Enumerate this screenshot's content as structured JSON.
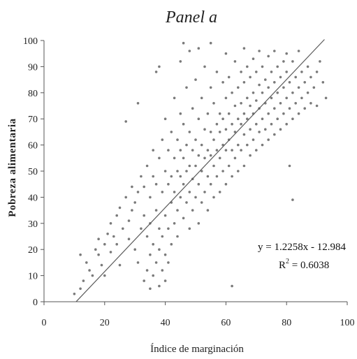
{
  "chart_data": {
    "type": "scatter",
    "title": "Panel a",
    "xlabel": "Índice de marginación",
    "ylabel": "Pobreza alimentaria",
    "xlim": [
      0,
      100
    ],
    "ylim": [
      0,
      100
    ],
    "x_ticks": [
      "0",
      "20",
      "40",
      "60",
      "80",
      "100"
    ],
    "y_ticks": [
      "0",
      "10",
      "20",
      "30",
      "40",
      "50",
      "60",
      "70",
      "80",
      "90",
      "100"
    ],
    "grid": false,
    "legend": "none",
    "point_color": "#7a7a7a",
    "line_color": "#5a5a5a",
    "trendline": {
      "equation": "y = 1.2258x - 12.984",
      "r2_prefix": "R",
      "r2_exp": "2",
      "r2_suffix": " = 0.6038",
      "slope": 1.2258,
      "intercept": -12.984,
      "x_range": [
        10.6,
        92.5
      ]
    },
    "points": [
      [
        10,
        3
      ],
      [
        12,
        5
      ],
      [
        13,
        8
      ],
      [
        12,
        18
      ],
      [
        14,
        15
      ],
      [
        15,
        12
      ],
      [
        16,
        10
      ],
      [
        17,
        20
      ],
      [
        18,
        24
      ],
      [
        18,
        18
      ],
      [
        19,
        14
      ],
      [
        20,
        10
      ],
      [
        20,
        22
      ],
      [
        21,
        26
      ],
      [
        22,
        19
      ],
      [
        22,
        30
      ],
      [
        23,
        25
      ],
      [
        24,
        22
      ],
      [
        24,
        33
      ],
      [
        25,
        36
      ],
      [
        25,
        14
      ],
      [
        26,
        28
      ],
      [
        27,
        69
      ],
      [
        27,
        40
      ],
      [
        28,
        31
      ],
      [
        28,
        24
      ],
      [
        29,
        35
      ],
      [
        29,
        44
      ],
      [
        30,
        20
      ],
      [
        30,
        38
      ],
      [
        31,
        76
      ],
      [
        31,
        15
      ],
      [
        31,
        42
      ],
      [
        32,
        28
      ],
      [
        32,
        48
      ],
      [
        33,
        8
      ],
      [
        33,
        33
      ],
      [
        33,
        44
      ],
      [
        34,
        12
      ],
      [
        34,
        25
      ],
      [
        34,
        52
      ],
      [
        35,
        5
      ],
      [
        35,
        18
      ],
      [
        35,
        30
      ],
      [
        35,
        40
      ],
      [
        36,
        10
      ],
      [
        36,
        22
      ],
      [
        36,
        48
      ],
      [
        36,
        58
      ],
      [
        37,
        15
      ],
      [
        37,
        35
      ],
      [
        37,
        45
      ],
      [
        37,
        88
      ],
      [
        38,
        6
      ],
      [
        38,
        20
      ],
      [
        38,
        28
      ],
      [
        38,
        55
      ],
      [
        38,
        90
      ],
      [
        39,
        12
      ],
      [
        39,
        25
      ],
      [
        39,
        42
      ],
      [
        39,
        62
      ],
      [
        40,
        8
      ],
      [
        40,
        18
      ],
      [
        40,
        33
      ],
      [
        40,
        50
      ],
      [
        40,
        70
      ],
      [
        41,
        15
      ],
      [
        41,
        28
      ],
      [
        41,
        45
      ],
      [
        41,
        58
      ],
      [
        42,
        22
      ],
      [
        42,
        38
      ],
      [
        42,
        48
      ],
      [
        42,
        65
      ],
      [
        43,
        30
      ],
      [
        43,
        42
      ],
      [
        43,
        55
      ],
      [
        43,
        78
      ],
      [
        44,
        25
      ],
      [
        44,
        35
      ],
      [
        44,
        50
      ],
      [
        44,
        62
      ],
      [
        45,
        40
      ],
      [
        45,
        48
      ],
      [
        45,
        58
      ],
      [
        45,
        72
      ],
      [
        45,
        92
      ],
      [
        46,
        32
      ],
      [
        46,
        45
      ],
      [
        46,
        55
      ],
      [
        46,
        68
      ],
      [
        46,
        99
      ],
      [
        47,
        38
      ],
      [
        47,
        50
      ],
      [
        47,
        60
      ],
      [
        47,
        82
      ],
      [
        48,
        28
      ],
      [
        48,
        42
      ],
      [
        48,
        52
      ],
      [
        48,
        65
      ],
      [
        48,
        96
      ],
      [
        49,
        35
      ],
      [
        49,
        47
      ],
      [
        49,
        58
      ],
      [
        49,
        74
      ],
      [
        50,
        40
      ],
      [
        50,
        52
      ],
      [
        50,
        62
      ],
      [
        50,
        85
      ],
      [
        51,
        30
      ],
      [
        51,
        45
      ],
      [
        51,
        56
      ],
      [
        51,
        70
      ],
      [
        51,
        97
      ],
      [
        52,
        38
      ],
      [
        52,
        50
      ],
      [
        52,
        60
      ],
      [
        52,
        78
      ],
      [
        53,
        42
      ],
      [
        53,
        55
      ],
      [
        53,
        66
      ],
      [
        53,
        90
      ],
      [
        54,
        35
      ],
      [
        54,
        48
      ],
      [
        54,
        58
      ],
      [
        54,
        72
      ],
      [
        55,
        45
      ],
      [
        55,
        56
      ],
      [
        55,
        65
      ],
      [
        55,
        82
      ],
      [
        55,
        99
      ],
      [
        56,
        40
      ],
      [
        56,
        52
      ],
      [
        56,
        62
      ],
      [
        56,
        76
      ],
      [
        57,
        48
      ],
      [
        57,
        58
      ],
      [
        57,
        68
      ],
      [
        57,
        88
      ],
      [
        58,
        42
      ],
      [
        58,
        55
      ],
      [
        58,
        65
      ],
      [
        58,
        72
      ],
      [
        59,
        50
      ],
      [
        59,
        60
      ],
      [
        59,
        70
      ],
      [
        59,
        84
      ],
      [
        60,
        45
      ],
      [
        60,
        58
      ],
      [
        60,
        66
      ],
      [
        60,
        78
      ],
      [
        60,
        95
      ],
      [
        61,
        52
      ],
      [
        61,
        62
      ],
      [
        61,
        72
      ],
      [
        61,
        86
      ],
      [
        62,
        6
      ],
      [
        62,
        48
      ],
      [
        62,
        58
      ],
      [
        62,
        68
      ],
      [
        62,
        80
      ],
      [
        63,
        55
      ],
      [
        63,
        65
      ],
      [
        63,
        75
      ],
      [
        63,
        92
      ],
      [
        64,
        50
      ],
      [
        64,
        60
      ],
      [
        64,
        70
      ],
      [
        64,
        82
      ],
      [
        65,
        58
      ],
      [
        65,
        68
      ],
      [
        65,
        76
      ],
      [
        65,
        88
      ],
      [
        66,
        52
      ],
      [
        66,
        64
      ],
      [
        66,
        72
      ],
      [
        66,
        84
      ],
      [
        66,
        97
      ],
      [
        67,
        60
      ],
      [
        67,
        70
      ],
      [
        67,
        78
      ],
      [
        67,
        90
      ],
      [
        68,
        56
      ],
      [
        68,
        66
      ],
      [
        68,
        75
      ],
      [
        68,
        86
      ],
      [
        69,
        62
      ],
      [
        69,
        72
      ],
      [
        69,
        80
      ],
      [
        69,
        93
      ],
      [
        70,
        58
      ],
      [
        70,
        68
      ],
      [
        70,
        77
      ],
      [
        70,
        88
      ],
      [
        71,
        65
      ],
      [
        71,
        74
      ],
      [
        71,
        83
      ],
      [
        71,
        96
      ],
      [
        72,
        60
      ],
      [
        72,
        70
      ],
      [
        72,
        80
      ],
      [
        72,
        90
      ],
      [
        73,
        66
      ],
      [
        73,
        76
      ],
      [
        73,
        85
      ],
      [
        74,
        62
      ],
      [
        74,
        72
      ],
      [
        74,
        82
      ],
      [
        74,
        94
      ],
      [
        75,
        68
      ],
      [
        75,
        78
      ],
      [
        75,
        88
      ],
      [
        76,
        64
      ],
      [
        76,
        74
      ],
      [
        76,
        84
      ],
      [
        76,
        96
      ],
      [
        77,
        70
      ],
      [
        77,
        80
      ],
      [
        77,
        90
      ],
      [
        78,
        66
      ],
      [
        78,
        76
      ],
      [
        78,
        86
      ],
      [
        79,
        72
      ],
      [
        79,
        82
      ],
      [
        79,
        92
      ],
      [
        80,
        68
      ],
      [
        80,
        78
      ],
      [
        80,
        88
      ],
      [
        80,
        95
      ],
      [
        81,
        52
      ],
      [
        81,
        74
      ],
      [
        81,
        84
      ],
      [
        82,
        39
      ],
      [
        82,
        70
      ],
      [
        82,
        80
      ],
      [
        82,
        92
      ],
      [
        83,
        76
      ],
      [
        83,
        86
      ],
      [
        84,
        72
      ],
      [
        84,
        82
      ],
      [
        84,
        96
      ],
      [
        85,
        78
      ],
      [
        85,
        88
      ],
      [
        86,
        74
      ],
      [
        86,
        84
      ],
      [
        87,
        80
      ],
      [
        87,
        90
      ],
      [
        88,
        76
      ],
      [
        88,
        86
      ],
      [
        89,
        82
      ],
      [
        90,
        88
      ],
      [
        90,
        75
      ],
      [
        91,
        92
      ],
      [
        92,
        84
      ],
      [
        93,
        78
      ]
    ]
  }
}
